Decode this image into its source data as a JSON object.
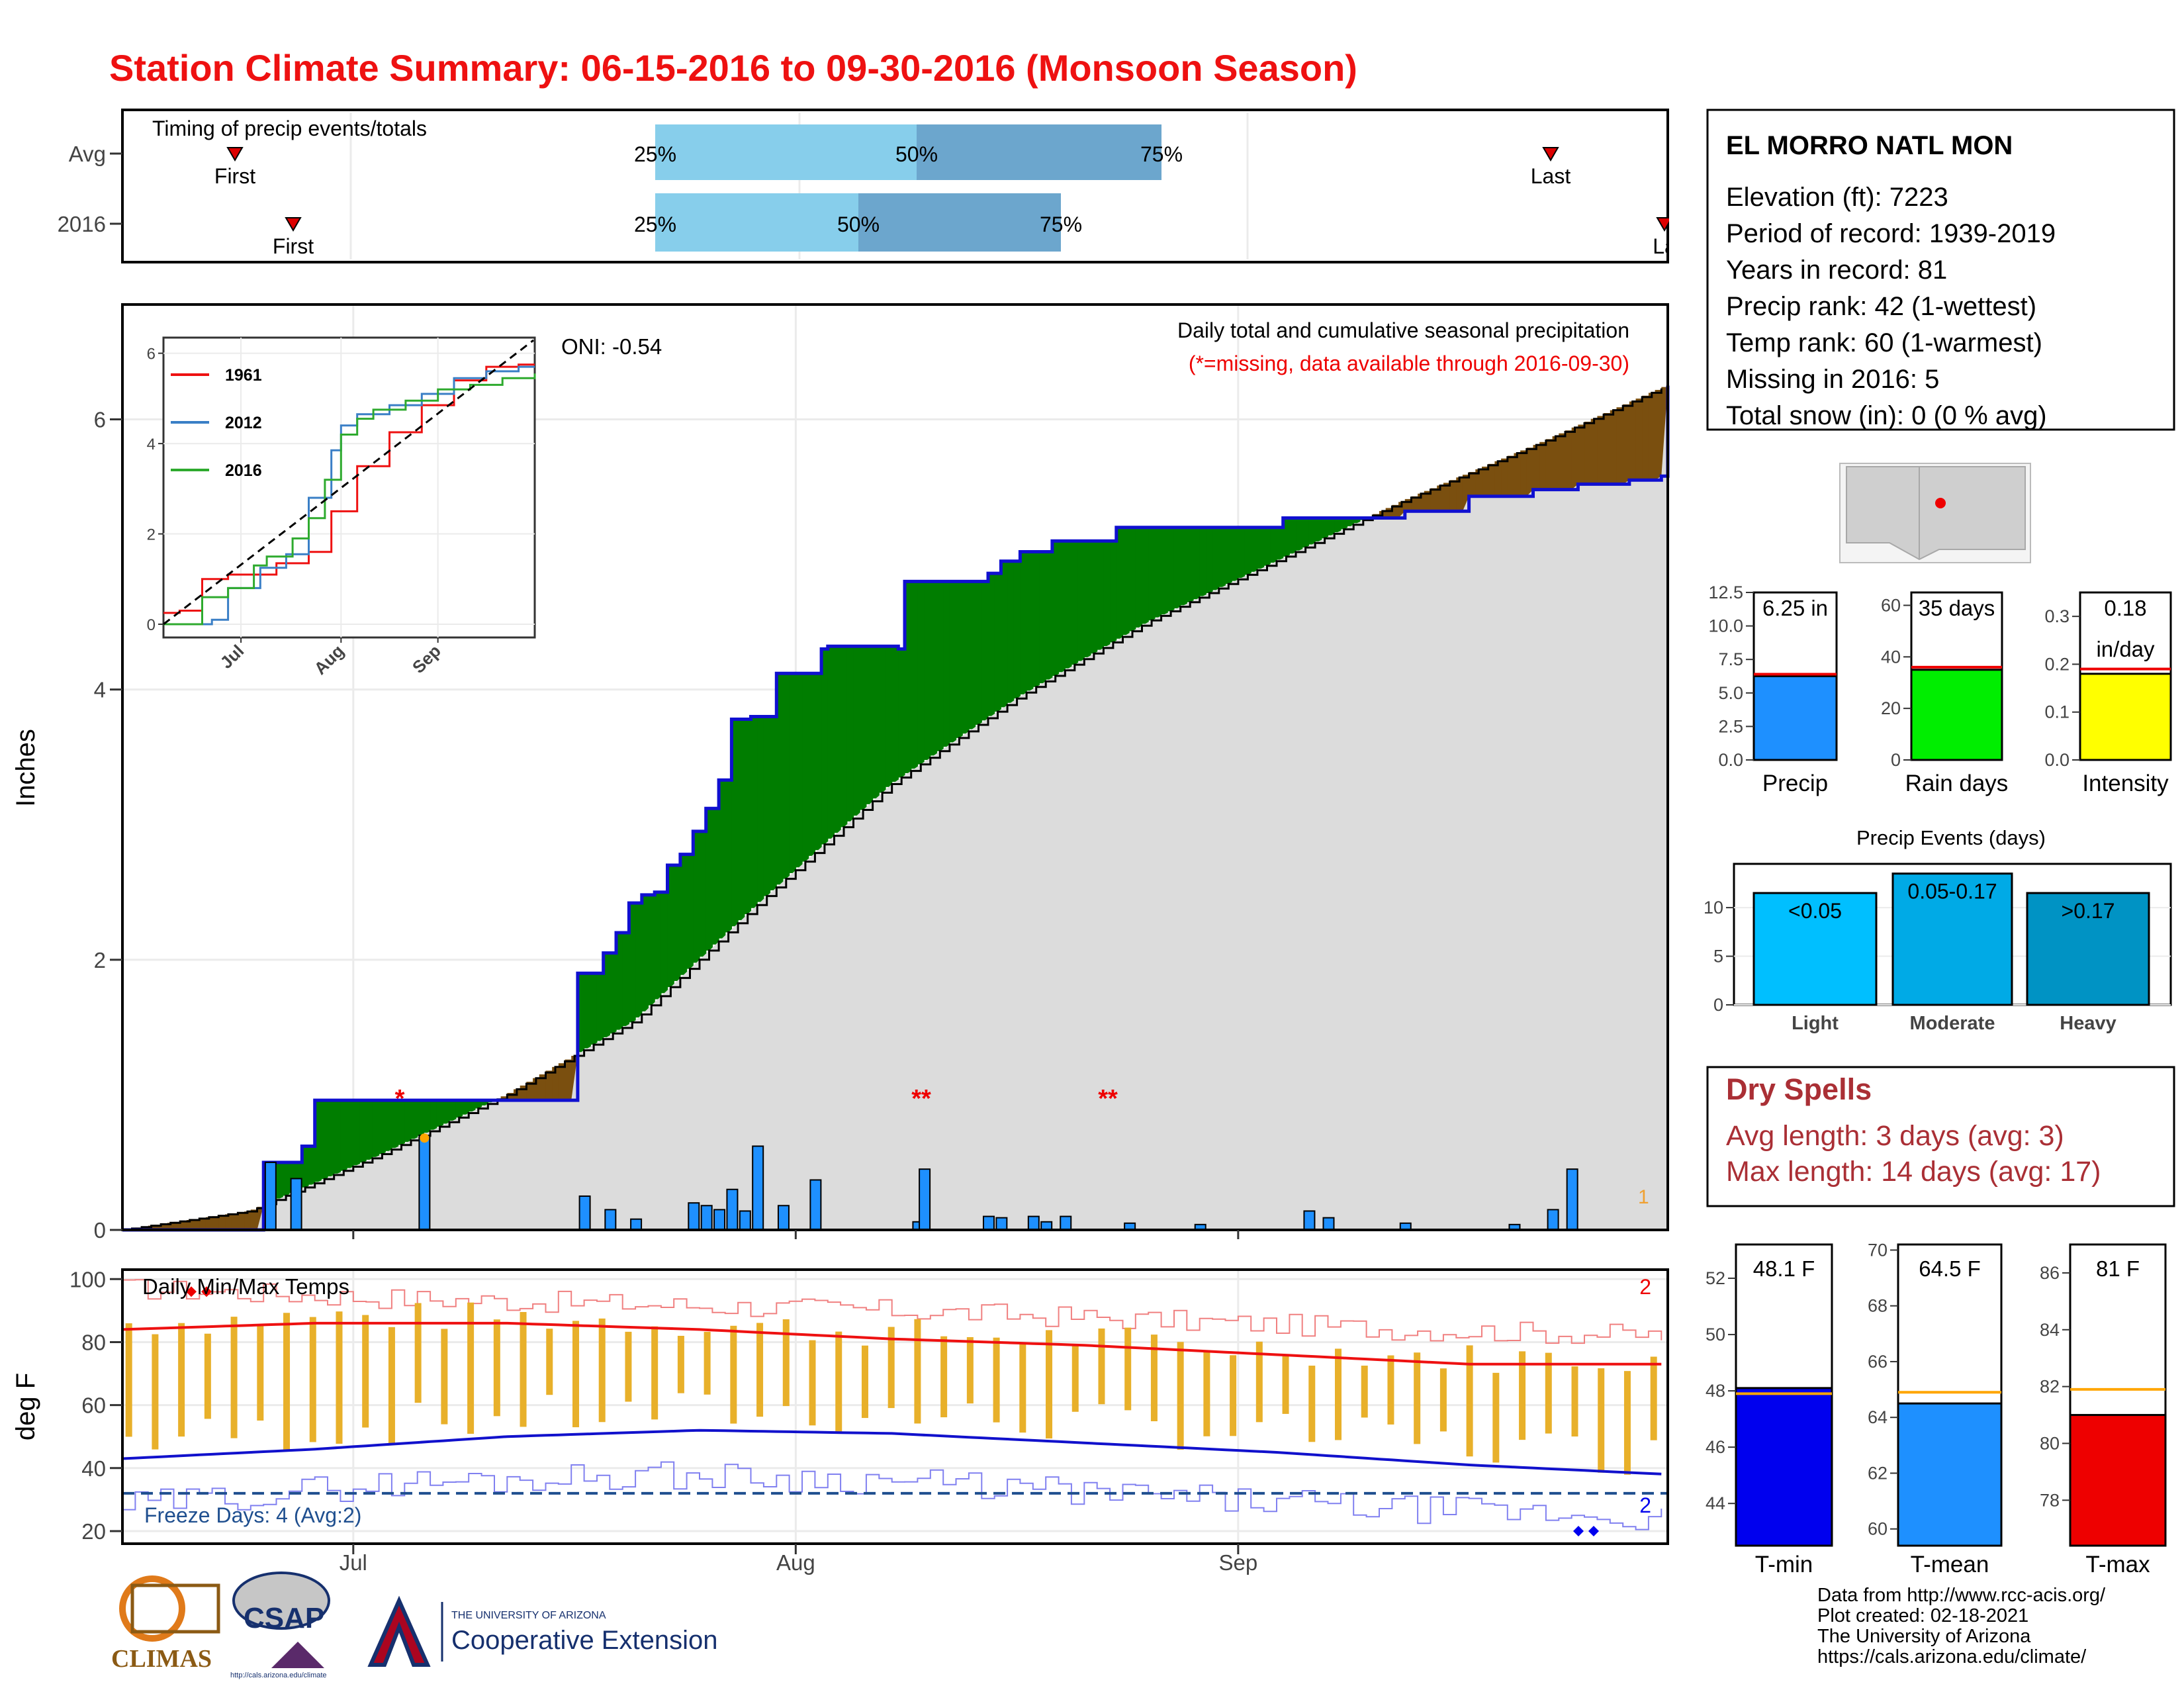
{
  "title": "Station Climate Summary: 06-15-2016 to 09-30-2016 (Monsoon Season)",
  "station": {
    "name": "EL MORRO NATL MON",
    "lines": [
      "Elevation (ft): 7223",
      "Period of record: 1939-2019",
      "Years in record: 81",
      "Precip rank: 42 (1-wettest)",
      "Temp rank: 60 (1-warmest)",
      "Missing in 2016: 5",
      "Total snow (in): 0 (0 % avg)"
    ]
  },
  "colors": {
    "title": "#ee1111",
    "cum_above": "#007d00",
    "cum_below": "#7a4f0f",
    "daily_bar": "#1e90ff",
    "temp_bar": "#e8b02a",
    "max_line": "#ee1111",
    "min_line": "#1111cc",
    "dry_spells": "#aa2f35",
    "freeze_line": "#1f4f8f"
  },
  "timing": {
    "label": "Timing of precip events/totals",
    "rows": [
      {
        "year": "Avg",
        "first": "First",
        "last": "Last",
        "p25": "25%",
        "p50": "50%",
        "p75": "75%"
      },
      {
        "year": "2016",
        "first": "First",
        "last": "La",
        "p25": "25%",
        "p50": "50%",
        "p75": "75%"
      }
    ]
  },
  "main_panel": {
    "ylabel": "Inches",
    "oni": "ONI: -0.54",
    "caption1": "Daily total and cumulative seasonal precipitation",
    "caption2": "(*=missing, data available through 2016-09-30)",
    "yticks": [
      "0",
      "2",
      "4",
      "6"
    ],
    "xticks": [
      "Jul",
      "Aug",
      "Sep"
    ],
    "missing_markers": [
      "*",
      "**",
      "**"
    ],
    "corner_count": "1"
  },
  "inset": {
    "legend": [
      "1961",
      "2012",
      "2016"
    ],
    "yticks": [
      "0",
      "2",
      "4",
      "6"
    ],
    "xticks": [
      "Jul",
      "Aug",
      "Sep"
    ]
  },
  "temp_panel": {
    "title": "Daily Min/Max Temps",
    "ylabel": "deg F",
    "yticks": [
      "20",
      "40",
      "60",
      "80",
      "100"
    ],
    "freeze_text": "Freeze Days: 4 (Avg:2)",
    "max_count": "2",
    "min_count": "2"
  },
  "summary_bars": [
    {
      "label": "Precip",
      "value_text": "6.25 in",
      "value": 6.25,
      "avg": 6.4,
      "ymax": 12.5,
      "yticks": [
        "0.0",
        "2.5",
        "5.0",
        "7.5",
        "10.0",
        "12.5"
      ],
      "color": "#1e90ff"
    },
    {
      "label": "Rain days",
      "value_text": "35 days",
      "value": 35,
      "avg": 36,
      "ymax": 65,
      "yticks": [
        "0",
        "20",
        "40",
        "60"
      ],
      "color": "#00ee00"
    },
    {
      "label": "Intensity",
      "value_text": "0.18",
      "value_text2": "in/day",
      "value": 0.18,
      "avg": 0.19,
      "ymax": 0.35,
      "yticks": [
        "0.0",
        "0.1",
        "0.2",
        "0.3"
      ],
      "color": "#ffff00"
    }
  ],
  "precip_events": {
    "title": "Precip Events (days)",
    "yticks": [
      "0",
      "5",
      "10"
    ],
    "bars": [
      {
        "label": "Light",
        "inner": "<0.05",
        "value": 11.5,
        "color": "#00bfff"
      },
      {
        "label": "Moderate",
        "inner": "0.05-0.17",
        "value": 13.5,
        "color": "#00aae6"
      },
      {
        "label": "Heavy",
        "inner": ">0.17",
        "value": 11.5,
        "color": "#0093c4"
      }
    ]
  },
  "dry_spells": {
    "title": "Dry Spells",
    "avg": "Avg length: 3 days (avg: 3)",
    "max": "Max length: 14 days (avg: 17)"
  },
  "temp_bars": [
    {
      "label": "T-min",
      "value_text": "48.1 F",
      "value": 48.1,
      "avg": 47.9,
      "ymin": 42.5,
      "ymax": 53.2,
      "yticks": [
        "44",
        "46",
        "48",
        "50",
        "52"
      ],
      "color": "#0000ee"
    },
    {
      "label": "T-mean",
      "value_text": "64.5 F",
      "value": 64.5,
      "avg": 64.9,
      "ymin": 59.4,
      "ymax": 70.2,
      "yticks": [
        "60",
        "62",
        "64",
        "66",
        "68",
        "70"
      ],
      "color": "#1e90ff"
    },
    {
      "label": "T-max",
      "value_text": "81 F",
      "value": 81.0,
      "avg": 81.9,
      "ymin": 76.4,
      "ymax": 87.0,
      "yticks": [
        "78",
        "80",
        "82",
        "84",
        "86"
      ],
      "color": "#ee0000"
    }
  ],
  "footer": [
    "Data from http://www.rcc-acis.org/",
    "Plot created: 02-18-2021",
    "The University of Arizona",
    "https://cals.arizona.edu/climate/"
  ],
  "logos": {
    "climas": "CLIMAS",
    "csap": "CSAP",
    "csap_url": "http://cals.arizona.edu/climate",
    "ua_small": "THE UNIVERSITY OF ARIZONA",
    "ua_big": "Cooperative Extension"
  },
  "chart_data": [
    {
      "type": "area",
      "title": "Daily total and cumulative seasonal precipitation",
      "ylabel": "Inches",
      "x_range": [
        "2016-06-15",
        "2016-09-30"
      ],
      "ylim": [
        0,
        6.85
      ],
      "cumulative_2016": [
        [
          0,
          0
        ],
        [
          22,
          0.5
        ],
        [
          23,
          0.5
        ],
        [
          27,
          0.5
        ],
        [
          28,
          0.62
        ],
        [
          29,
          0.62
        ],
        [
          30,
          0.96
        ],
        [
          49,
          0.96
        ],
        [
          50,
          0.96
        ],
        [
          71,
          1.9
        ],
        [
          73,
          1.9
        ],
        [
          75,
          2.05
        ],
        [
          77,
          2.2
        ],
        [
          79,
          2.42
        ],
        [
          81,
          2.48
        ],
        [
          83,
          2.5
        ],
        [
          85,
          2.7
        ],
        [
          87,
          2.78
        ],
        [
          89,
          2.95
        ],
        [
          91,
          3.12
        ],
        [
          93,
          3.33
        ],
        [
          95,
          3.78
        ],
        [
          98,
          3.8
        ],
        [
          100,
          3.8
        ],
        [
          102,
          4.12
        ],
        [
          106,
          4.12
        ],
        [
          109,
          4.3
        ],
        [
          110,
          4.32
        ],
        [
          116,
          4.32
        ],
        [
          121,
          4.3
        ],
        [
          122,
          4.34
        ],
        [
          122,
          4.8
        ],
        [
          131,
          4.8
        ],
        [
          135,
          4.86
        ],
        [
          137,
          4.95
        ],
        [
          140,
          5.02
        ],
        [
          142,
          5.02
        ],
        [
          145,
          5.1
        ],
        [
          148,
          5.1
        ],
        [
          155,
          5.1
        ],
        [
          155,
          5.2
        ],
        [
          165,
          5.2
        ],
        [
          175,
          5.2
        ],
        [
          181,
          5.27
        ],
        [
          200,
          5.32
        ],
        [
          210,
          5.43
        ],
        [
          220,
          5.48
        ],
        [
          227,
          5.52
        ],
        [
          235,
          5.55
        ],
        [
          240,
          5.58
        ],
        [
          241,
          6.25
        ]
      ],
      "average_cumulative": [
        [
          0,
          0
        ],
        [
          20,
          0.14
        ],
        [
          40,
          0.55
        ],
        [
          60,
          1.0
        ],
        [
          80,
          1.55
        ],
        [
          100,
          2.45
        ],
        [
          120,
          3.3
        ],
        [
          140,
          3.95
        ],
        [
          160,
          4.5
        ],
        [
          180,
          4.95
        ],
        [
          200,
          5.4
        ],
        [
          220,
          5.8
        ],
        [
          241,
          6.25
        ]
      ],
      "daily_precip": [
        [
          23,
          0.5
        ],
        [
          27,
          0.38
        ],
        [
          47,
          0.7
        ],
        [
          72,
          0.25
        ],
        [
          76,
          0.15
        ],
        [
          80,
          0.08
        ],
        [
          89,
          0.2
        ],
        [
          91,
          0.18
        ],
        [
          93,
          0.15
        ],
        [
          95,
          0.3
        ],
        [
          97,
          0.14
        ],
        [
          99,
          0.62
        ],
        [
          103,
          0.18
        ],
        [
          108,
          0.37
        ],
        [
          124,
          0.06
        ],
        [
          125,
          0.45
        ],
        [
          135,
          0.1
        ],
        [
          137,
          0.09
        ],
        [
          142,
          0.1
        ],
        [
          144,
          0.06
        ],
        [
          147,
          0.1
        ],
        [
          157,
          0.05
        ],
        [
          168,
          0.04
        ],
        [
          185,
          0.14
        ],
        [
          188,
          0.09
        ],
        [
          200,
          0.05
        ],
        [
          217,
          0.04
        ],
        [
          223,
          0.15
        ],
        [
          226,
          0.45
        ]
      ],
      "avg_daily_marker": [
        [
          47,
          0.68
        ]
      ],
      "series": [
        {
          "name": "2016"
        }
      ]
    },
    {
      "type": "line",
      "x": [
        "Jul",
        "Aug",
        "Sep"
      ],
      "ylim": [
        0,
        6.3
      ],
      "series": [
        {
          "name": "1961",
          "points": [
            [
              0,
              0.25
            ],
            [
              5,
              0.3
            ],
            [
              12,
              1.0
            ],
            [
              20,
              1.1
            ],
            [
              35,
              1.35
            ],
            [
              45,
              1.6
            ],
            [
              52,
              2.5
            ],
            [
              60,
              3.5
            ],
            [
              70,
              4.25
            ],
            [
              80,
              4.85
            ],
            [
              90,
              5.4
            ],
            [
              100,
              5.7
            ],
            [
              110,
              5.75
            ],
            [
              115,
              5.75
            ]
          ]
        },
        {
          "name": "2012",
          "points": [
            [
              0,
              0
            ],
            [
              15,
              0.1
            ],
            [
              20,
              0.8
            ],
            [
              30,
              1.25
            ],
            [
              38,
              1.55
            ],
            [
              45,
              2.8
            ],
            [
              52,
              3.85
            ],
            [
              55,
              4.4
            ],
            [
              60,
              4.65
            ],
            [
              70,
              4.85
            ],
            [
              80,
              5.1
            ],
            [
              90,
              5.45
            ],
            [
              100,
              5.6
            ],
            [
              110,
              5.7
            ],
            [
              115,
              5.7
            ]
          ]
        },
        {
          "name": "2016",
          "points": [
            [
              0,
              0
            ],
            [
              12,
              0.6
            ],
            [
              20,
              0.8
            ],
            [
              28,
              1.3
            ],
            [
              32,
              1.5
            ],
            [
              40,
              1.9
            ],
            [
              45,
              2.35
            ],
            [
              50,
              3.2
            ],
            [
              55,
              4.2
            ],
            [
              60,
              4.55
            ],
            [
              65,
              4.75
            ],
            [
              75,
              4.95
            ],
            [
              85,
              5.2
            ],
            [
              95,
              5.3
            ],
            [
              105,
              5.45
            ],
            [
              115,
              5.55
            ]
          ]
        }
      ]
    },
    {
      "type": "line",
      "title": "Daily Min/Max Temps",
      "ylabel": "deg F",
      "ylim": [
        16,
        103
      ],
      "avg_max": [
        [
          0,
          84
        ],
        [
          30,
          86
        ],
        [
          60,
          86
        ],
        [
          90,
          84
        ],
        [
          120,
          81
        ],
        [
          150,
          79
        ],
        [
          180,
          76
        ],
        [
          210,
          73
        ],
        [
          241,
          73
        ]
      ],
      "avg_min": [
        [
          0,
          43
        ],
        [
          30,
          46
        ],
        [
          60,
          50
        ],
        [
          90,
          52
        ],
        [
          120,
          51
        ],
        [
          150,
          48
        ],
        [
          180,
          45
        ],
        [
          210,
          41
        ],
        [
          241,
          38
        ]
      ],
      "record_max": [
        [
          0,
          97
        ],
        [
          40,
          94
        ],
        [
          80,
          92
        ],
        [
          120,
          90
        ],
        [
          160,
          87
        ],
        [
          200,
          84
        ],
        [
          241,
          82
        ]
      ],
      "record_min": [
        [
          0,
          28
        ],
        [
          40,
          35
        ],
        [
          80,
          38
        ],
        [
          120,
          36
        ],
        [
          160,
          31
        ],
        [
          200,
          27
        ],
        [
          241,
          24
        ]
      ],
      "freeze_threshold": 32
    }
  ]
}
